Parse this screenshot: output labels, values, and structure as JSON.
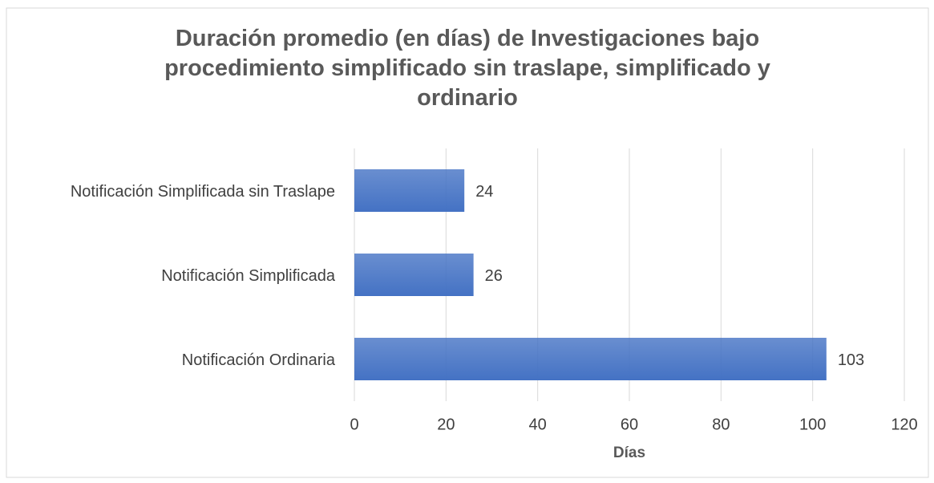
{
  "chart_data": {
    "type": "barh",
    "title": "Duración promedio (en días) de Investigaciones bajo procedimiento simplificado sin traslape, simplificado y ordinario",
    "categories": [
      "Notificación Simplificada sin Traslape",
      "Notificación Simplificada",
      "Notificación Ordinaria"
    ],
    "values": [
      24,
      26,
      103
    ],
    "color": "#4472c4",
    "xlabel": "Días",
    "xlim": [
      0,
      120
    ],
    "xticks": [
      0,
      20,
      40,
      60,
      80,
      100,
      120
    ],
    "grid": true
  }
}
